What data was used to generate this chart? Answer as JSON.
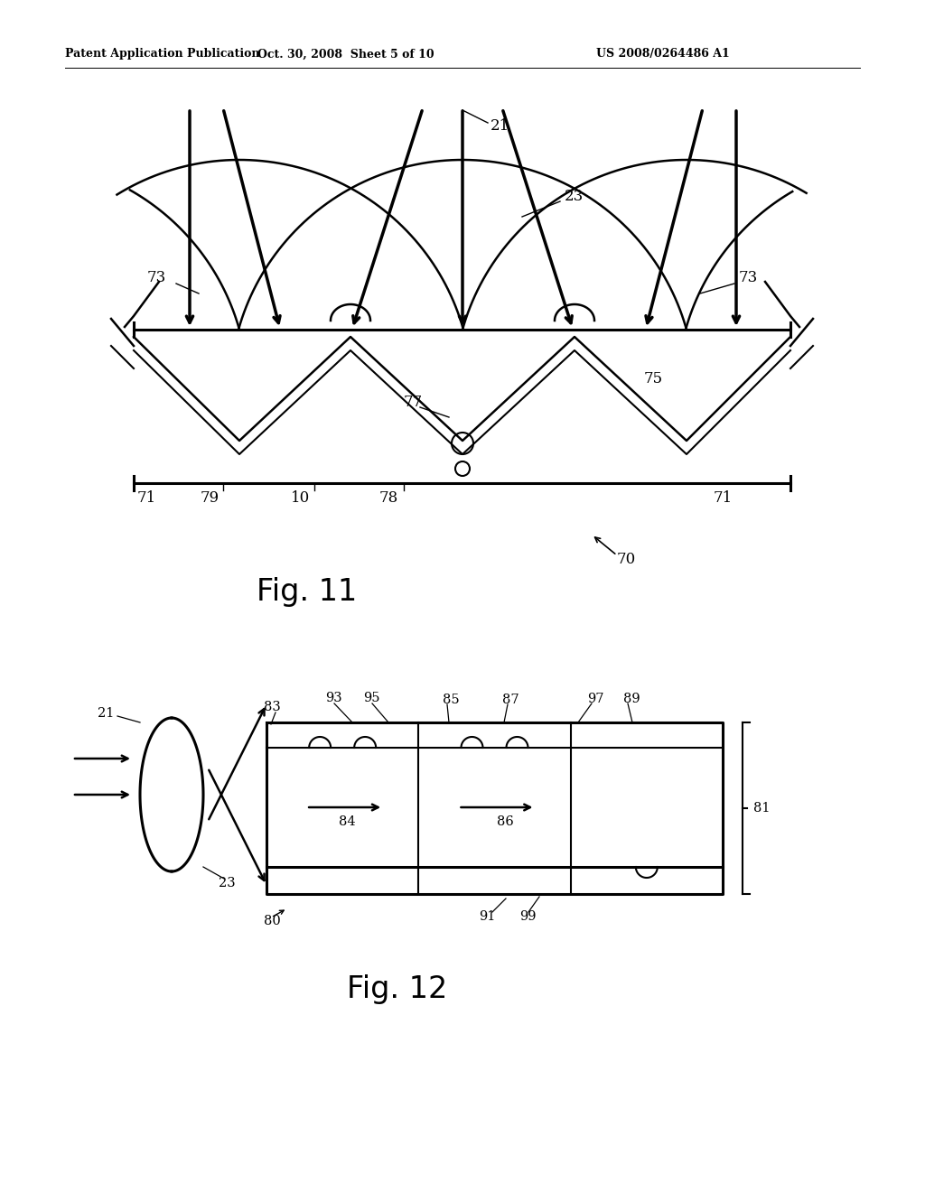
{
  "bg_color": "#ffffff",
  "header_left": "Patent Application Publication",
  "header_mid": "Oct. 30, 2008  Sheet 5 of 10",
  "header_right": "US 2008/0264486 A1",
  "fig11_caption": "Fig. 11",
  "fig12_caption": "Fig. 12"
}
